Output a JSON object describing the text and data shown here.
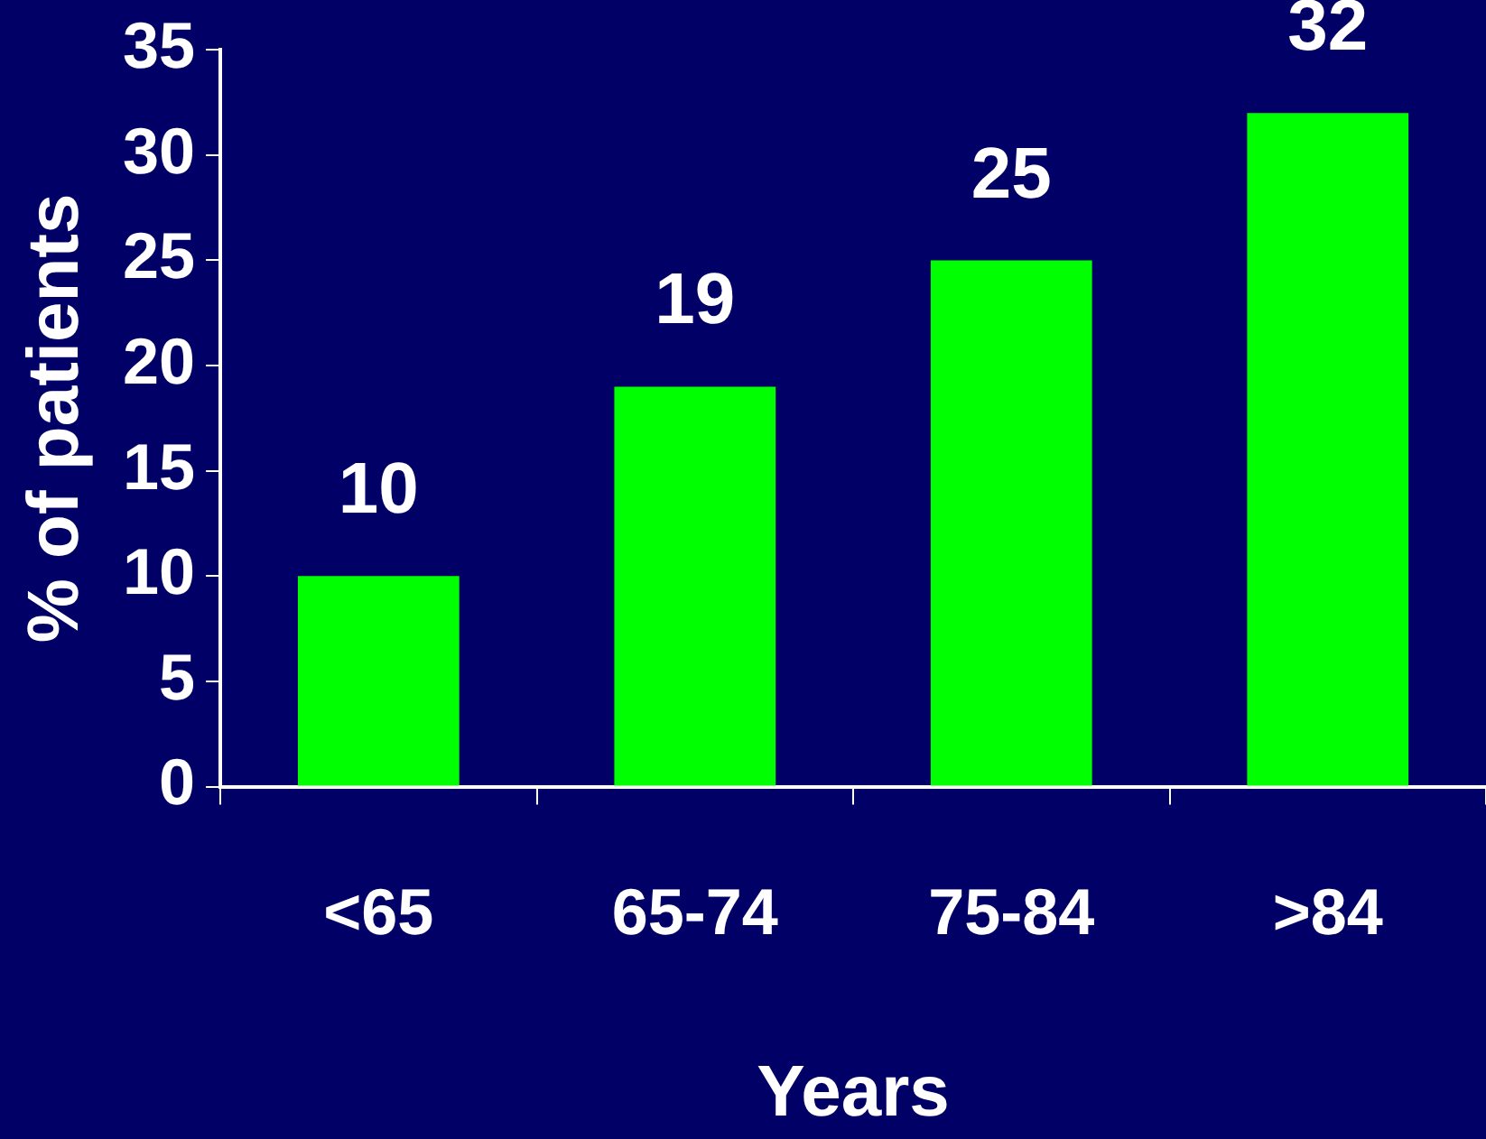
{
  "chart_data": {
    "type": "bar",
    "categories": [
      "<65",
      "65-74",
      "75-84",
      ">84"
    ],
    "values": [
      10,
      19,
      25,
      32
    ],
    "color": "#00ff00",
    "xlabel": "Years",
    "ylabel": "% of patients",
    "ylim": [
      0,
      35
    ],
    "yticks": [
      0,
      5,
      10,
      15,
      20,
      25,
      30,
      35
    ],
    "grid": false,
    "legend": false,
    "data_labels": true
  }
}
